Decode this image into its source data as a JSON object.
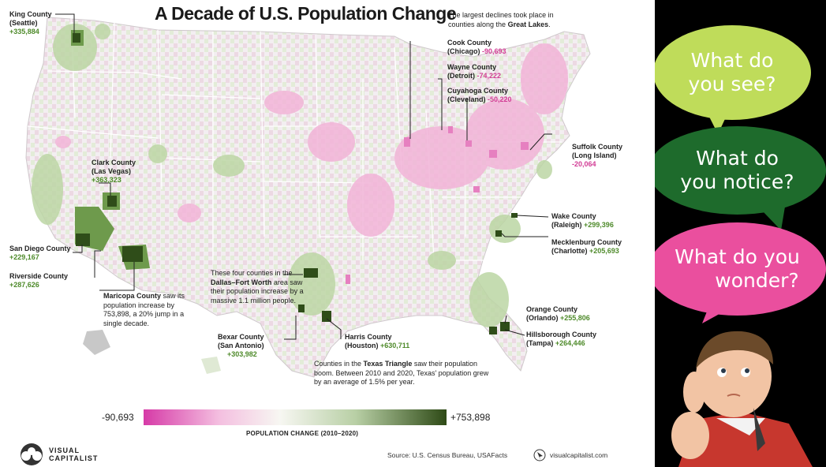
{
  "map": {
    "title": "A Decade of U.S. Population Change",
    "great_lakes_note": {
      "pre": "The largest declines took place in counties along the ",
      "bold": "Great Lakes",
      "post": "."
    },
    "labels": {
      "king": {
        "name": "King County",
        "sub": "(Seattle)",
        "value": "+335,884"
      },
      "clark": {
        "name": "Clark County",
        "sub": "(Las Vegas)",
        "value": "+363,323"
      },
      "sandiego": {
        "name": "San Diego County",
        "value": "+229,167"
      },
      "riverside": {
        "name": "Riverside County",
        "value": "+287,626"
      },
      "cook": {
        "name": "Cook County",
        "sub": "(Chicago)",
        "value": "-90,693"
      },
      "wayne": {
        "name": "Wayne County",
        "sub": "(Detroit)",
        "value": "-74,222"
      },
      "cuyahoga": {
        "name": "Cuyahoga County",
        "sub": "(Cleveland)",
        "value": "-50,220"
      },
      "suffolk": {
        "name": "Suffolk County",
        "sub": "(Long Island)",
        "value": "-20,064"
      },
      "wake": {
        "name": "Wake County",
        "sub": "(Raleigh)",
        "value": "+299,396"
      },
      "mecklenburg": {
        "name": "Mecklenburg County",
        "sub": "(Charlotte)",
        "value": "+205,693"
      },
      "orange": {
        "name": "Orange County",
        "sub": "(Orlando)",
        "value": "+255,806"
      },
      "hillsborough": {
        "name": "Hillsborough County",
        "sub": "(Tampa)",
        "value": "+264,446"
      },
      "harris": {
        "name": "Harris County",
        "sub": "(Houston)",
        "value": "+630,711"
      },
      "bexar": {
        "name": "Bexar County",
        "sub": "(San Antonio)",
        "value": "+303,982"
      }
    },
    "maricopa_note": {
      "bold": "Maricopa County",
      "text": " saw its population increase by 753,898, a 20% jump in a single decade."
    },
    "dfw_note": {
      "pre": "These four counties in the ",
      "bold": "Dallas–Fort Worth",
      "post": " area saw their population increase by a massive 1.1 million people."
    },
    "texas_note": {
      "pre": "Counties in the ",
      "bold": "Texas Triangle",
      "post": " saw their population boom. Between 2010 and 2020, Texas' population grew by an average of 1.5% per year."
    },
    "legend": {
      "min": "-90,693",
      "max": "+753,898",
      "title": "POPULATION CHANGE (2010–2020)",
      "colors": [
        "#d63aa7",
        "#f7f7f2",
        "#2e4a16"
      ]
    },
    "source": "Source: U.S. Census Bureau, USAFacts",
    "site": "visualcapitalist.com",
    "brand": {
      "line1": "VISUAL",
      "line2": "CAPITALIST"
    }
  },
  "prompts": {
    "see": {
      "line1": "What do",
      "line2": "you see?",
      "color": "#bfdc5a"
    },
    "notice": {
      "line1": "What do",
      "line2": "you notice?",
      "color": "#1e6b2c"
    },
    "wonder": {
      "line1": "What do you",
      "line2": "wonder?",
      "color": "#ea4f9e"
    }
  },
  "illustration": "thinking-boy"
}
